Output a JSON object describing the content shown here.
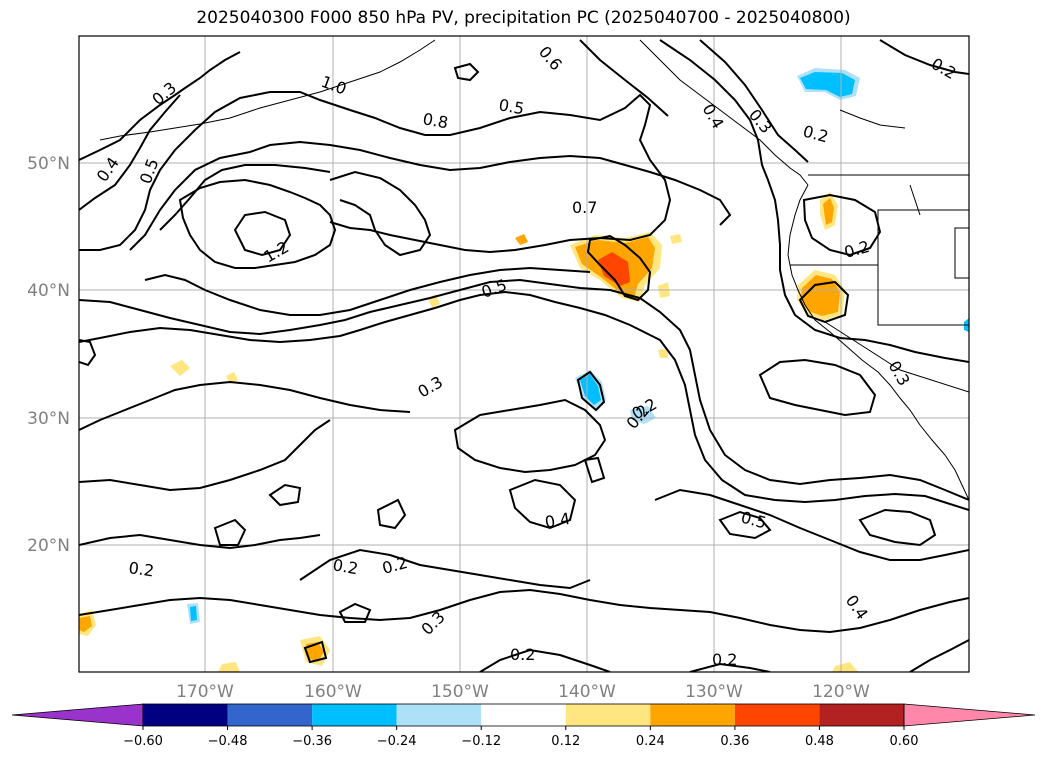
{
  "title": "2025040300 F000 850 hPa PV, precipitation PC (2025040700 - 2025040800)",
  "lat_labels": [
    "50°N",
    "40°N",
    "30°N",
    "20°N"
  ],
  "lon_labels": [
    "170°W",
    "160°W",
    "150°W",
    "140°W",
    "130°W",
    "120°W"
  ],
  "contour_labels": [
    "0.3",
    "0.4",
    "0.5",
    "1.0",
    "0.8",
    "0.5",
    "0.6",
    "0.2",
    "0.3",
    "0.2",
    "1.2",
    "0.7",
    "0.5",
    "0.4",
    "0.2",
    "0.3",
    "0.2",
    "0.3",
    "0.2",
    "0.5",
    "0.2",
    "0.4",
    "0.2",
    "0.2",
    "0.3",
    "0.2",
    "0.2",
    "0.4"
  ],
  "colorbar": {
    "ticks": [
      "−0.60",
      "−0.48",
      "−0.36",
      "−0.24",
      "−0.12",
      "0.12",
      "0.24",
      "0.36",
      "0.48",
      "0.60"
    ],
    "colors": [
      "#9933cc",
      "#000080",
      "#3366cc",
      "#00bfff",
      "#aee0f8",
      "#ffffff",
      "#ffe680",
      "#ffa500",
      "#ff4500",
      "#b22222",
      "#ff88aa"
    ]
  }
}
